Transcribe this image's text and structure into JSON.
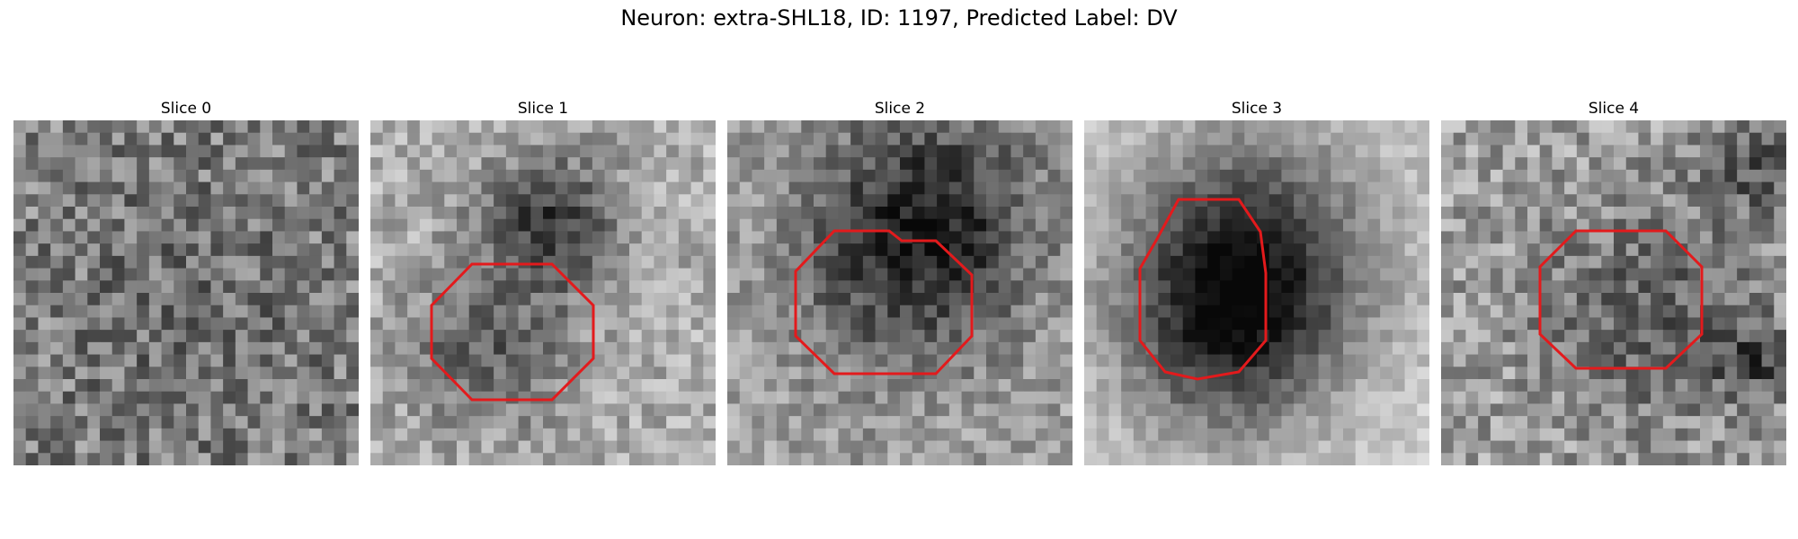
{
  "figure": {
    "title": "Neuron: extra-SHL18, ID: 1197, Predicted Label: DV"
  },
  "contour_color": "#e31a1c",
  "panels": [
    {
      "label": "Slice 0",
      "has_contour": false
    },
    {
      "label": "Slice 1",
      "has_contour": true
    },
    {
      "label": "Slice 2",
      "has_contour": true
    },
    {
      "label": "Slice 3",
      "has_contour": true
    },
    {
      "label": "Slice 4",
      "has_contour": true
    }
  ]
}
